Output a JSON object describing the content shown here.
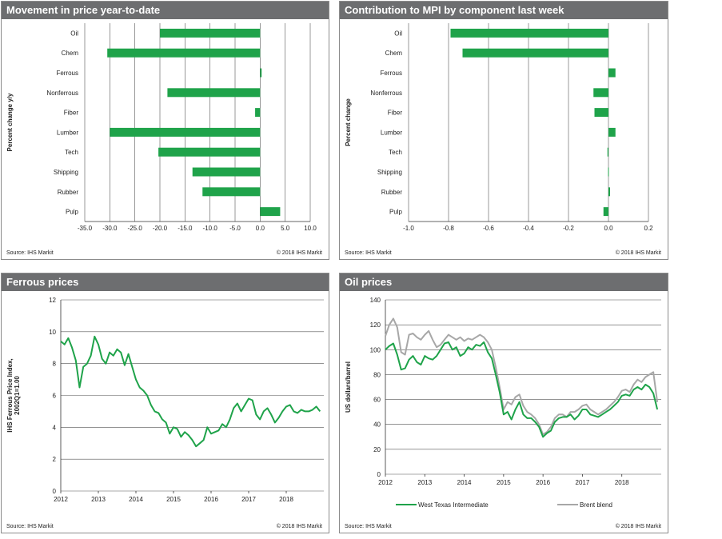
{
  "colors": {
    "green": "#1fa34a",
    "gray": "#a7a7a7",
    "header": "#6d6e70",
    "grid": "#555555"
  },
  "panels": [
    {
      "title": "Movement in price year-to-date",
      "source": "Source:  IHS Markit",
      "copyright": "© 2018  IHS Markit"
    },
    {
      "title": "Contribution  to MPI by component last week",
      "source": "Source:  IHS Markit",
      "copyright": "© 2018  IHS Markit"
    },
    {
      "title": "Ferrous prices",
      "source": "Source:  IHS Markit",
      "copyright": "© 2018  IHS Markit"
    },
    {
      "title": "Oil prices",
      "source": "Source:  IHS Markit",
      "copyright": "© 2018  IHS Markit"
    }
  ],
  "chart_data": [
    {
      "type": "bar",
      "orientation": "horizontal",
      "title": "Movement in price year-to-date",
      "ylabel": "Percent change y/y",
      "categories": [
        "Oil",
        "Chem",
        "Ferrous",
        "Nonferrous",
        "Fiber",
        "Lumber",
        "Tech",
        "Shipping",
        "Rubber",
        "Pulp"
      ],
      "values": [
        -20.0,
        -30.5,
        0.3,
        -18.5,
        -1.0,
        -30.0,
        -20.3,
        -13.5,
        -11.5,
        4.0
      ],
      "xlim": [
        -35,
        10
      ],
      "xticks": [
        "-35.0",
        "-30.0",
        "-25.0",
        "-20.0",
        "-15.0",
        "-10.0",
        "-5.0",
        "0.0",
        "5.0",
        "10.0"
      ],
      "grid": "vertical"
    },
    {
      "type": "bar",
      "orientation": "horizontal",
      "title": "Contribution  to MPI by component last week",
      "ylabel": "Percent change",
      "categories": [
        "Oil",
        "Chem",
        "Ferrous",
        "Nonferrous",
        "Fiber",
        "Lumber",
        "Tech",
        "Shipping",
        "Rubber",
        "Pulp"
      ],
      "values": [
        -0.79,
        -0.73,
        0.035,
        -0.075,
        -0.07,
        0.035,
        -0.005,
        -0.002,
        0.008,
        -0.025
      ],
      "xlim": [
        -1.0,
        0.2
      ],
      "xticks": [
        "-1.0",
        "-0.8",
        "-0.6",
        "-0.4",
        "-0.2",
        "0.0",
        "0.2"
      ],
      "grid": "vertical"
    },
    {
      "type": "line",
      "title": "Ferrous prices",
      "ylabel": "IHS Ferrous Price Index, 2002Q1=1.00",
      "ylim": [
        0,
        12
      ],
      "yticks": [
        "0",
        "2",
        "4",
        "6",
        "8",
        "10",
        "12"
      ],
      "xlim": [
        2012,
        2019
      ],
      "xticks": [
        "2012",
        "2013",
        "2014",
        "2015",
        "2016",
        "2017",
        "2018"
      ],
      "grid": "horizontal",
      "series": [
        {
          "x": [
            2012.0,
            2012.1,
            2012.2,
            2012.3,
            2012.4,
            2012.5,
            2012.6,
            2012.7,
            2012.8,
            2012.9,
            2013.0,
            2013.1,
            2013.2,
            2013.3,
            2013.4,
            2013.5,
            2013.6,
            2013.7,
            2013.8,
            2013.9,
            2014.0,
            2014.1,
            2014.2,
            2014.3,
            2014.4,
            2014.5,
            2014.6,
            2014.7,
            2014.8,
            2014.9,
            2015.0,
            2015.1,
            2015.2,
            2015.3,
            2015.4,
            2015.5,
            2015.6,
            2015.7,
            2015.8,
            2015.9,
            2016.0,
            2016.1,
            2016.2,
            2016.3,
            2016.4,
            2016.5,
            2016.6,
            2016.7,
            2016.8,
            2016.9,
            2017.0,
            2017.1,
            2017.2,
            2017.3,
            2017.4,
            2017.5,
            2017.6,
            2017.7,
            2017.8,
            2017.9,
            2018.0,
            2018.1,
            2018.2,
            2018.3,
            2018.4,
            2018.5,
            2018.6,
            2018.7,
            2018.8,
            2018.9
          ],
          "y": [
            9.4,
            9.2,
            9.6,
            9.0,
            8.2,
            6.5,
            7.8,
            8.0,
            8.5,
            9.7,
            9.2,
            8.3,
            8.0,
            8.7,
            8.5,
            8.9,
            8.7,
            7.9,
            8.6,
            7.8,
            7.0,
            6.5,
            6.3,
            6.0,
            5.4,
            5.0,
            4.9,
            4.5,
            4.3,
            3.6,
            4.0,
            3.9,
            3.4,
            3.7,
            3.5,
            3.2,
            2.8,
            3.0,
            3.2,
            4.0,
            3.6,
            3.7,
            3.8,
            4.2,
            4.0,
            4.5,
            5.2,
            5.5,
            5.0,
            5.4,
            5.8,
            5.7,
            4.8,
            4.5,
            5.0,
            5.2,
            4.8,
            4.3,
            4.6,
            5.0,
            5.3,
            5.4,
            5.0,
            4.9,
            5.1,
            5.0,
            5.0,
            5.1,
            5.3,
            5.0
          ],
          "name": ""
        }
      ]
    },
    {
      "type": "line",
      "title": "Oil prices",
      "ylabel": "US dollars/barrel",
      "ylim": [
        0,
        140
      ],
      "yticks": [
        "0",
        "20",
        "40",
        "60",
        "80",
        "100",
        "120",
        "140"
      ],
      "xlim": [
        2012,
        2019
      ],
      "xticks": [
        "2012",
        "2013",
        "2014",
        "2015",
        "2016",
        "2017",
        "2018"
      ],
      "grid": "horizontal",
      "series": [
        {
          "name": "West Texas Intermediate",
          "x": [
            2012.0,
            2012.1,
            2012.2,
            2012.3,
            2012.4,
            2012.5,
            2012.6,
            2012.7,
            2012.8,
            2012.9,
            2013.0,
            2013.1,
            2013.2,
            2013.3,
            2013.4,
            2013.5,
            2013.6,
            2013.7,
            2013.8,
            2013.9,
            2014.0,
            2014.1,
            2014.2,
            2014.3,
            2014.4,
            2014.5,
            2014.6,
            2014.7,
            2014.8,
            2014.9,
            2015.0,
            2015.1,
            2015.2,
            2015.3,
            2015.4,
            2015.5,
            2015.6,
            2015.7,
            2015.8,
            2015.9,
            2016.0,
            2016.1,
            2016.2,
            2016.3,
            2016.4,
            2016.5,
            2016.6,
            2016.7,
            2016.8,
            2016.9,
            2017.0,
            2017.1,
            2017.2,
            2017.3,
            2017.4,
            2017.5,
            2017.6,
            2017.7,
            2017.8,
            2017.9,
            2018.0,
            2018.1,
            2018.2,
            2018.3,
            2018.4,
            2018.5,
            2018.6,
            2018.7,
            2018.8,
            2018.9
          ],
          "y": [
            100,
            103,
            105,
            96,
            84,
            85,
            92,
            95,
            90,
            88,
            95,
            93,
            92,
            95,
            100,
            105,
            106,
            100,
            102,
            95,
            97,
            102,
            100,
            104,
            103,
            106,
            98,
            93,
            80,
            66,
            48,
            50,
            44,
            52,
            58,
            48,
            45,
            45,
            42,
            38,
            30,
            33,
            35,
            42,
            45,
            46,
            46,
            48,
            44,
            47,
            52,
            52,
            48,
            47,
            46,
            48,
            50,
            52,
            55,
            58,
            63,
            64,
            63,
            68,
            70,
            68,
            72,
            70,
            65,
            52
          ]
        },
        {
          "name": "Brent blend",
          "x": [
            2012.0,
            2012.1,
            2012.2,
            2012.3,
            2012.4,
            2012.5,
            2012.6,
            2012.7,
            2012.8,
            2012.9,
            2013.0,
            2013.1,
            2013.2,
            2013.3,
            2013.4,
            2013.5,
            2013.6,
            2013.7,
            2013.8,
            2013.9,
            2014.0,
            2014.1,
            2014.2,
            2014.3,
            2014.4,
            2014.5,
            2014.6,
            2014.7,
            2014.8,
            2014.9,
            2015.0,
            2015.1,
            2015.2,
            2015.3,
            2015.4,
            2015.5,
            2015.6,
            2015.7,
            2015.8,
            2015.9,
            2016.0,
            2016.1,
            2016.2,
            2016.3,
            2016.4,
            2016.5,
            2016.6,
            2016.7,
            2016.8,
            2016.9,
            2017.0,
            2017.1,
            2017.2,
            2017.3,
            2017.4,
            2017.5,
            2017.6,
            2017.7,
            2017.8,
            2017.9,
            2018.0,
            2018.1,
            2018.2,
            2018.3,
            2018.4,
            2018.5,
            2018.6,
            2018.7,
            2018.8,
            2018.9
          ],
          "y": [
            111,
            120,
            125,
            118,
            98,
            96,
            112,
            113,
            110,
            108,
            112,
            115,
            108,
            102,
            104,
            108,
            112,
            110,
            108,
            110,
            107,
            109,
            108,
            110,
            112,
            110,
            106,
            100,
            86,
            70,
            52,
            58,
            56,
            62,
            64,
            55,
            50,
            48,
            45,
            40,
            32,
            34,
            38,
            45,
            48,
            48,
            46,
            50,
            50,
            52,
            55,
            56,
            52,
            50,
            48,
            50,
            52,
            55,
            58,
            62,
            67,
            68,
            66,
            72,
            76,
            74,
            78,
            80,
            82,
            58
          ]
        }
      ],
      "legend": "bottom"
    }
  ]
}
